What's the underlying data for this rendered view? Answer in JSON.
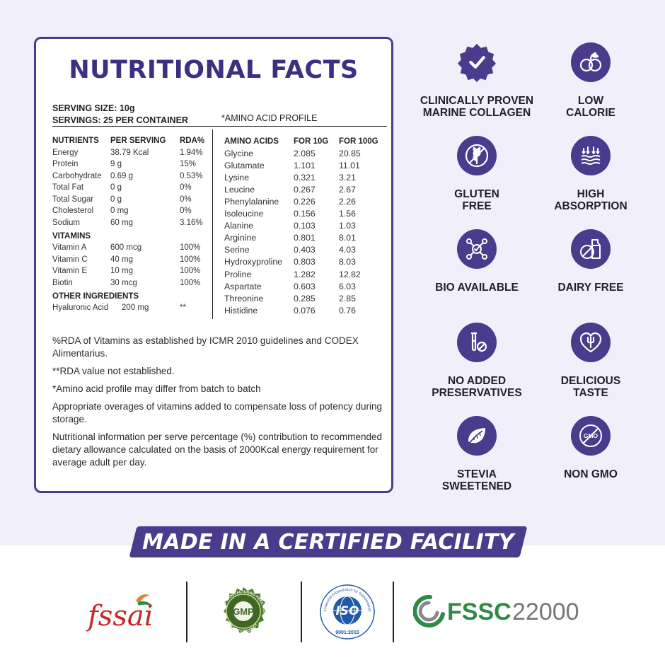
{
  "nutrition": {
    "title": "NUTRITIONAL FACTS",
    "serving_size": "SERVING SIZE: 10g",
    "servings": "SERVINGS: 25 PER CONTAINER",
    "amino_title": "*AMINO ACID PROFILE",
    "nutrient_headers": [
      "NUTRIENTS",
      "PER SERVING",
      "RDA%"
    ],
    "nutrients": [
      {
        "name": "Energy",
        "value": "38.79 Kcal",
        "rda": "1.94%"
      },
      {
        "name": "Protein",
        "value": "9 g",
        "rda": "15%"
      },
      {
        "name": "Carbohydrate",
        "value": "0.69 g",
        "rda": "0.53%"
      },
      {
        "name": "Total Fat",
        "value": "0 g",
        "rda": "0%"
      },
      {
        "name": "Total Sugar",
        "value": "0 g",
        "rda": "0%"
      },
      {
        "name": "Cholesterol",
        "value": "0 mg",
        "rda": "0%"
      },
      {
        "name": "Sodium",
        "value": "60 mg",
        "rda": "3.16%"
      }
    ],
    "vitamins_heading": "VITAMINS",
    "vitamins": [
      {
        "name": "Vitamin A",
        "value": "600 mcg",
        "rda": "100%"
      },
      {
        "name": "Vitamin C",
        "value": "40 mg",
        "rda": "100%"
      },
      {
        "name": "Vitamin E",
        "value": "10 mg",
        "rda": "100%"
      },
      {
        "name": "Biotin",
        "value": "30 mcg",
        "rda": "100%"
      }
    ],
    "other_heading": "OTHER INGREDIENTS",
    "other": [
      {
        "name": "Hyaluronic Acid",
        "value": "200 mg",
        "rda": "**"
      }
    ],
    "amino_headers": [
      "AMINO ACIDS",
      "FOR 10G",
      "FOR 100G"
    ],
    "amino_acids": [
      {
        "name": "Glycine",
        "g10": "2.085",
        "g100": "20.85"
      },
      {
        "name": "Glutamate",
        "g10": "1.101",
        "g100": "11.01"
      },
      {
        "name": "Lysine",
        "g10": "0.321",
        "g100": "3.21"
      },
      {
        "name": "Leucine",
        "g10": "0.267",
        "g100": "2.67"
      },
      {
        "name": "Phenylalanine",
        "g10": "0.226",
        "g100": "2.26"
      },
      {
        "name": "Isoleucine",
        "g10": "0.156",
        "g100": "1.56"
      },
      {
        "name": "Alanine",
        "g10": "0.103",
        "g100": "1.03"
      },
      {
        "name": "Arginine",
        "g10": "0.801",
        "g100": "8.01"
      },
      {
        "name": "Serine",
        "g10": "0.403",
        "g100": "4.03"
      },
      {
        "name": "Hydroxyproline",
        "g10": "0.803",
        "g100": "8.03"
      },
      {
        "name": "Proline",
        "g10": "1.282",
        "g100": "12.82"
      },
      {
        "name": "Aspartate",
        "g10": "0.603",
        "g100": "6.03"
      },
      {
        "name": "Threonine",
        "g10": "0.285",
        "g100": "2.85"
      },
      {
        "name": "Histidine",
        "g10": "0.076",
        "g100": "0.76"
      }
    ],
    "notes": [
      "%RDA of Vitamins as established by ICMR 2010 guidelines and CODEX Alimentarius.",
      "**RDA value not established.",
      "*Amino acid profile may differ from batch to batch",
      "Appropriate overages of vitamins added to compensate loss of potency during storage.",
      "Nutritional information per serve percentage (%) contribution to recommended dietary allowance calculated on the basis of 2000Kcal energy requirement for average adult per day."
    ]
  },
  "features": [
    {
      "label": "CLINICALLY PROVEN\nMARINE COLLAGEN",
      "icon": "check-badge-icon"
    },
    {
      "label": "LOW\nCALORIE",
      "icon": "fruit-icon"
    },
    {
      "label": "GLUTEN\nFREE",
      "icon": "wheat-slash-icon"
    },
    {
      "label": "HIGH\nABSORPTION",
      "icon": "absorption-icon"
    },
    {
      "label": "BIO AVAILABLE",
      "icon": "molecule-icon"
    },
    {
      "label": "DAIRY FREE",
      "icon": "milk-slash-icon"
    },
    {
      "label": "NO ADDED\nPRESERVATIVES",
      "icon": "test-tube-icon"
    },
    {
      "label": "DELICIOUS\nTASTE",
      "icon": "heart-fork-icon"
    },
    {
      "label": "STEVIA\nSWEETENED",
      "icon": "leaf-icon"
    },
    {
      "label": "NON GMO",
      "icon": "gmo-slash-icon"
    }
  ],
  "banner": "MADE IN A CERTIFIED FACILITY",
  "logos": {
    "fssai": "fssai",
    "gmp": "GMP",
    "gmp_ring_top": "GOOD MANUFACTURING PRACTICE",
    "gmp_ring_bottom": "QUALITY PRODUCT",
    "iso": "ISO",
    "iso_ring": "International Organization for Standardization",
    "iso_number": "9001:2015",
    "fssc_text": "FSSC",
    "fssc_number": "22000"
  },
  "colors": {
    "primary": "#4a3b8c",
    "background": "#f1effa",
    "fssai_red": "#c62828",
    "gmp_green": "#4c7a2e",
    "iso_blue": "#1f5aa8",
    "fssc_green": "#2e8b47",
    "fssc_gray": "#777777"
  }
}
